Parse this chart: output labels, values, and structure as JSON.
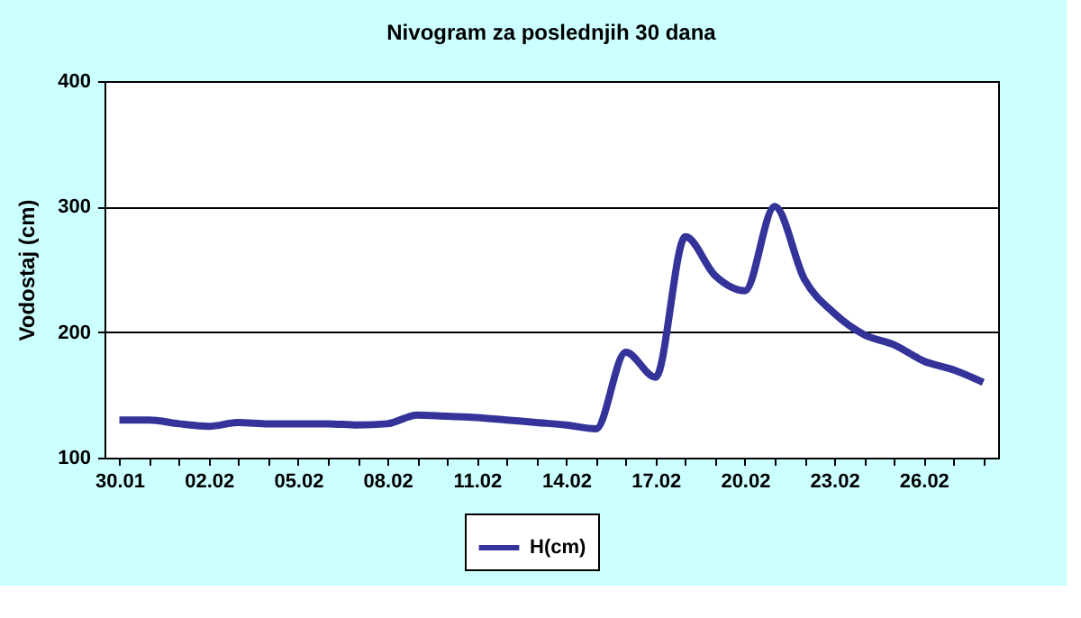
{
  "chart_data": {
    "type": "line",
    "title": "Nivogram za poslednjih 30 dana",
    "ylabel": "Vodostaj (cm)",
    "categories": [
      "30.01",
      null,
      null,
      "02.02",
      null,
      null,
      "05.02",
      null,
      null,
      "08.02",
      null,
      null,
      "11.02",
      null,
      null,
      "14.02",
      null,
      null,
      "17.02",
      null,
      null,
      "20.02",
      null,
      null,
      "23.02",
      null,
      null,
      "26.02",
      null,
      null
    ],
    "series": [
      {
        "name": "H(cm)",
        "color": "#333399",
        "values": [
          130,
          130,
          127,
          125,
          128,
          127,
          127,
          127,
          126,
          127,
          134,
          133,
          132,
          130,
          128,
          126,
          123,
          184,
          164,
          276,
          245,
          233,
          300,
          242,
          215,
          198,
          190,
          177,
          170,
          160
        ]
      }
    ],
    "ylim": [
      100,
      400
    ],
    "yticks": [
      100,
      200,
      300,
      400
    ],
    "grid": "y",
    "legend": "bottom",
    "marker": "none",
    "line_style": "solid"
  }
}
